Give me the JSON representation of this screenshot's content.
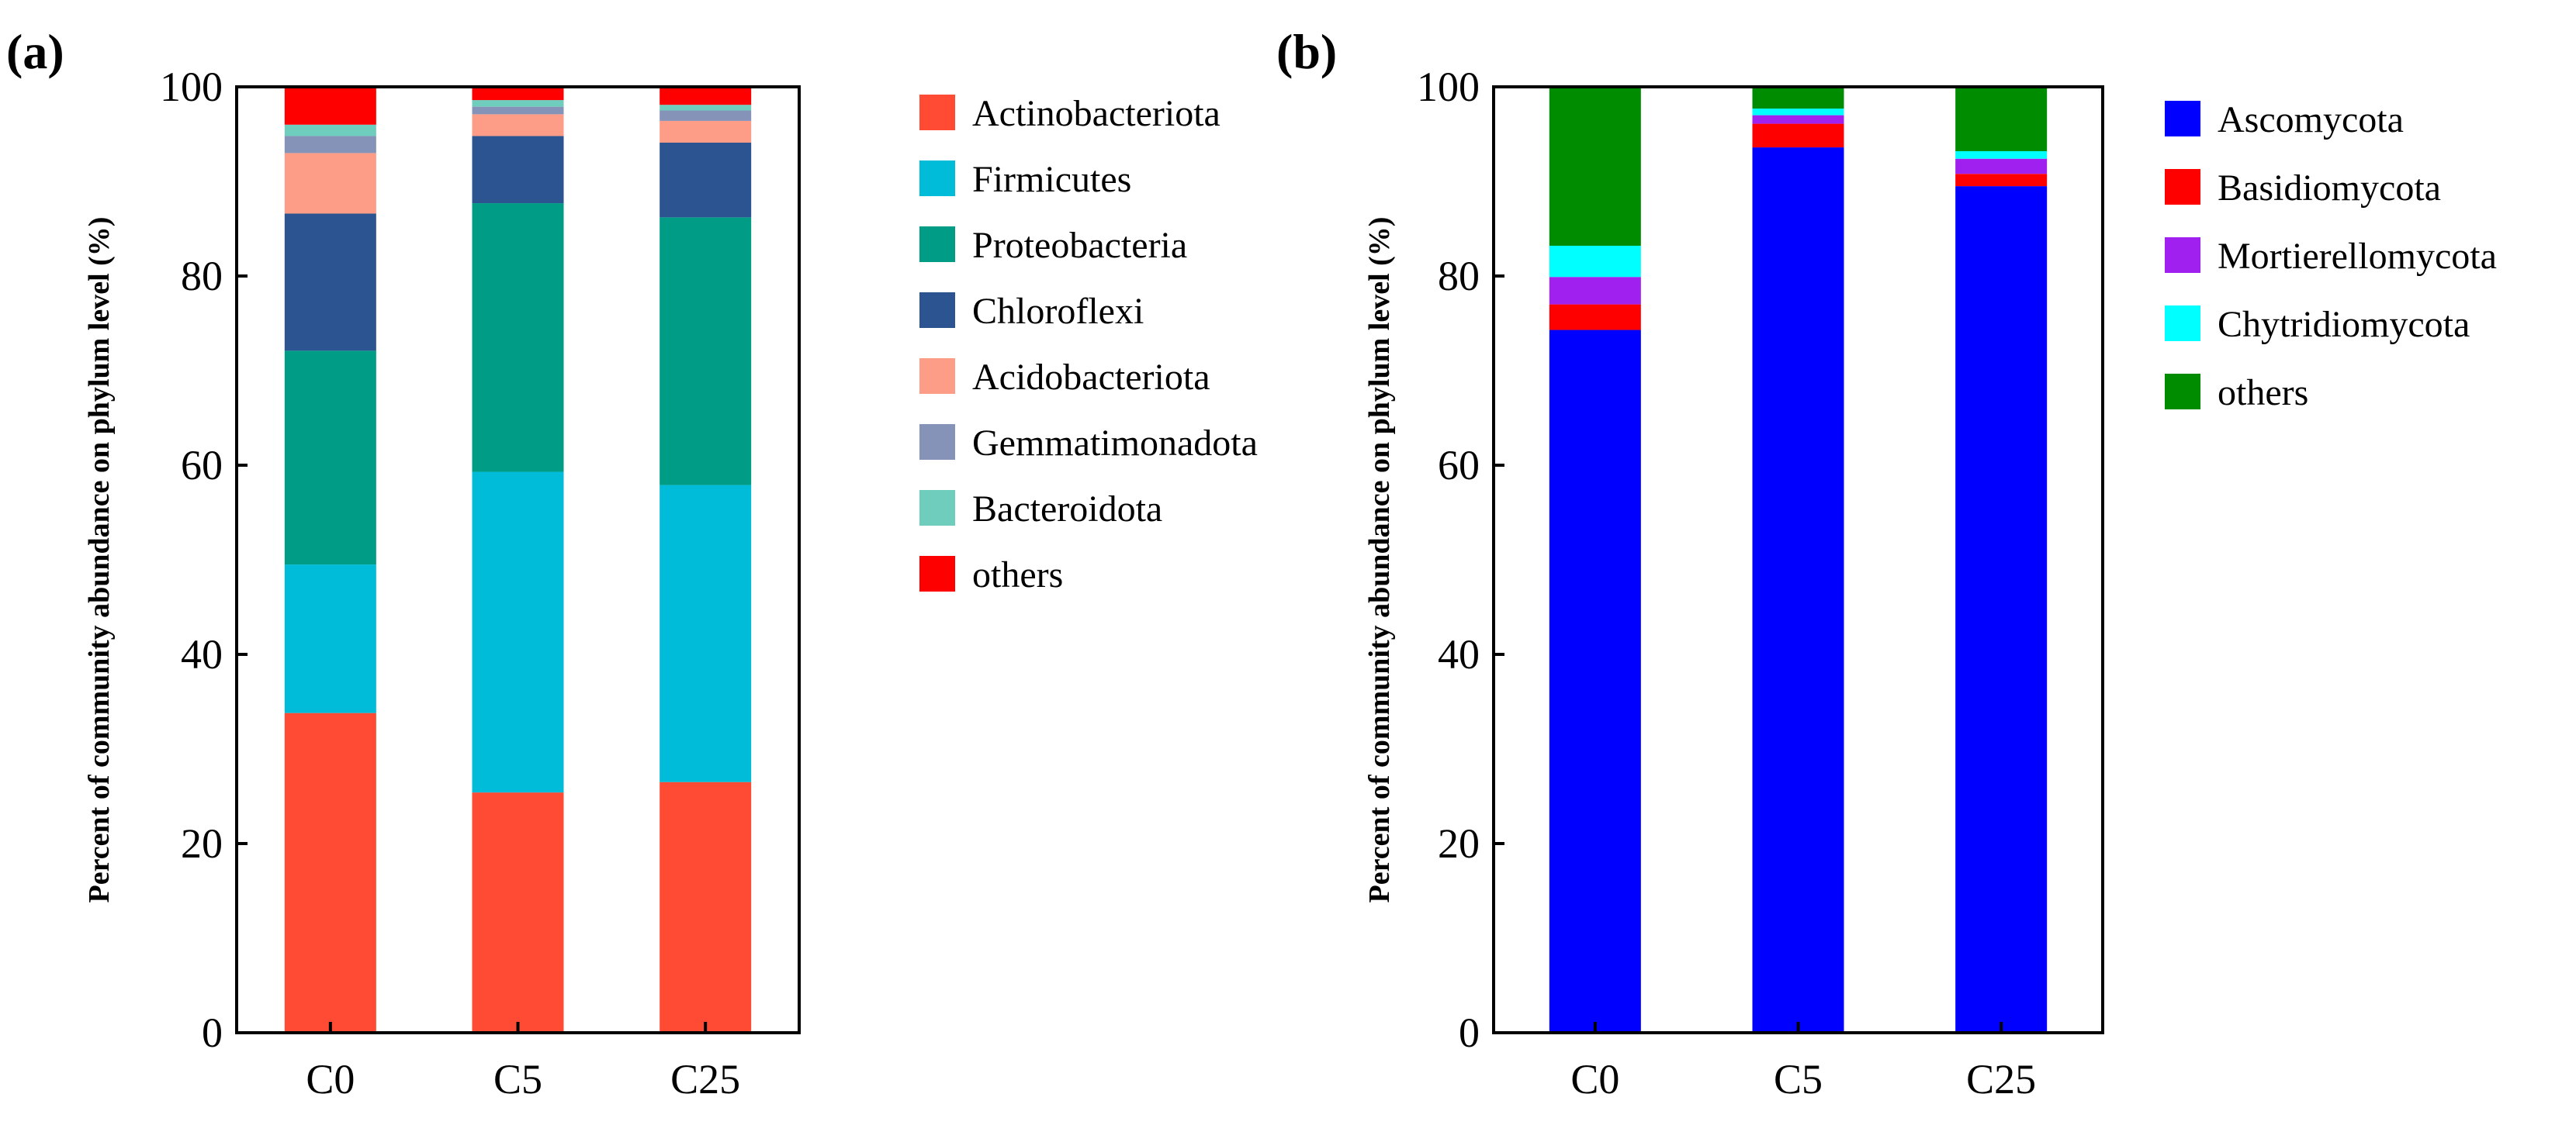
{
  "chart_data": [
    {
      "panel_label": "(a)",
      "type": "bar",
      "stacked": true,
      "categories": [
        "C0",
        "C5",
        "C25"
      ],
      "ylabel": "Percent of community abundance on phylum level (%)",
      "xlabel": "",
      "ylim": [
        0,
        100
      ],
      "yticks": [
        0,
        20,
        40,
        60,
        80,
        100
      ],
      "legend_position": "right",
      "series": [
        {
          "name": "Actinobacteriota",
          "color": "#FF4B33",
          "values": [
            33.8,
            25.4,
            26.5
          ]
        },
        {
          "name": "Firmicutes",
          "color": "#00BCD8",
          "values": [
            15.7,
            33.9,
            31.4
          ]
        },
        {
          "name": "Proteobacteria",
          "color": "#009C86",
          "values": [
            22.6,
            28.4,
            28.3
          ]
        },
        {
          "name": "Chloroflexi",
          "color": "#2B5491",
          "values": [
            14.5,
            7.1,
            7.9
          ]
        },
        {
          "name": "Acidobacteriota",
          "color": "#FD9C87",
          "values": [
            6.4,
            2.3,
            2.3
          ]
        },
        {
          "name": "Gemmatimonadota",
          "color": "#8493B7",
          "values": [
            1.8,
            0.8,
            1.1
          ]
        },
        {
          "name": "Bacteroidota",
          "color": "#6FCDBE",
          "values": [
            1.2,
            0.7,
            0.6
          ]
        },
        {
          "name": "others",
          "color": "#FF0000",
          "values": [
            4.0,
            1.4,
            1.9
          ]
        }
      ]
    },
    {
      "panel_label": "(b)",
      "type": "bar",
      "stacked": true,
      "categories": [
        "C0",
        "C5",
        "C25"
      ],
      "ylabel": "Percent of community abundance on phylum level (%)",
      "xlabel": "",
      "ylim": [
        0,
        100
      ],
      "yticks": [
        0,
        20,
        40,
        60,
        80,
        100
      ],
      "legend_position": "right",
      "series": [
        {
          "name": "Ascomycota",
          "color": "#0000FF",
          "values": [
            74.3,
            93.6,
            89.5
          ]
        },
        {
          "name": "Basidiomycota",
          "color": "#FF0000",
          "values": [
            2.7,
            2.5,
            1.3
          ]
        },
        {
          "name": "Mortierellomycota",
          "color": "#A020F0",
          "values": [
            2.9,
            0.9,
            1.6
          ]
        },
        {
          "name": "Chytridiomycota",
          "color": "#00FFFF",
          "values": [
            3.3,
            0.7,
            0.8
          ]
        },
        {
          "name": "others",
          "color": "#008C00",
          "values": [
            16.8,
            2.3,
            6.8
          ]
        }
      ]
    }
  ]
}
